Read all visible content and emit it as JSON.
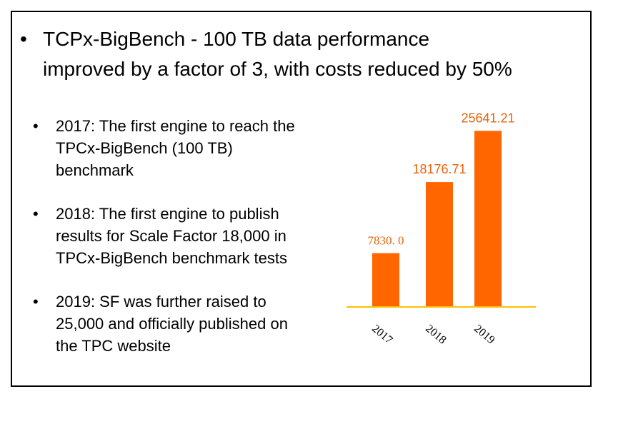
{
  "slide": {
    "headline": {
      "bullet": "•",
      "lines": [
        "TCPx-BigBench - 100 TB data performance",
        "improved by a factor of 3, with costs reduced by 50%"
      ]
    },
    "milestones": [
      {
        "bullet": "•",
        "lines": [
          "2017: The first engine to reach the",
          "TPCx-BigBench (100 TB)",
          "benchmark"
        ]
      },
      {
        "bullet": "•",
        "lines": [
          "2018: The first engine to publish",
          "results for Scale Factor 18,000 in",
          "TPCx-BigBench benchmark tests"
        ]
      },
      {
        "bullet": "•",
        "lines": [
          "2019: SF was further raised to",
          "25,000 and officially published on",
          "the TPC website"
        ]
      }
    ]
  },
  "chart_data": {
    "type": "bar",
    "categories": [
      "2017",
      "2018",
      "2019"
    ],
    "values": [
      7830.0,
      18176.71,
      25641.21
    ],
    "value_labels": [
      "7830. 0",
      "18176.71",
      "25641.21"
    ],
    "title": "",
    "xlabel": "",
    "ylabel": "",
    "ylim": [
      0,
      26500
    ],
    "grid": false,
    "legend": "none",
    "bar_color": "#ff6600",
    "baseline_color": "#ffc000",
    "label_color": "#e8640a",
    "tick_label_rotation_deg": 40
  }
}
